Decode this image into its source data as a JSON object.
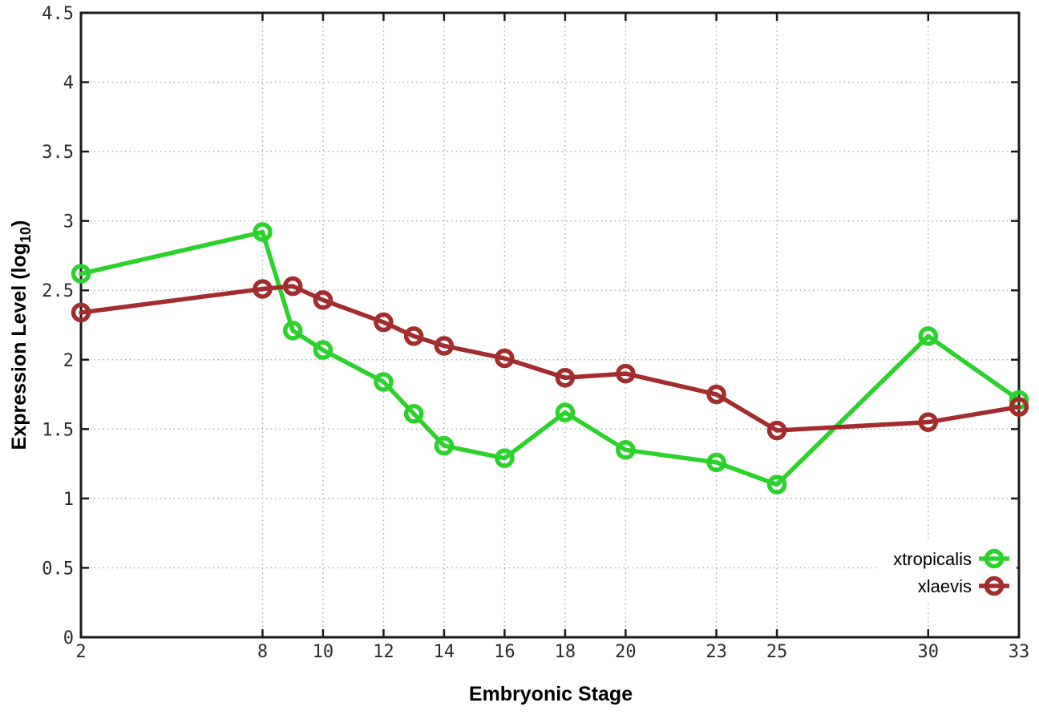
{
  "chart_data": {
    "type": "line",
    "title": "",
    "xlabel": "Embryonic Stage",
    "ylabel": "Expression Level (log10)",
    "ylabel_parts": {
      "main": "Expression Level (log",
      "sub": "10",
      "close": ")"
    },
    "x": [
      2,
      8,
      9,
      10,
      12,
      13,
      14,
      16,
      18,
      20,
      23,
      25,
      30,
      33
    ],
    "xticks": [
      2,
      8,
      10,
      12,
      14,
      16,
      18,
      20,
      23,
      25,
      30,
      33
    ],
    "yticks": [
      0,
      0.5,
      1,
      1.5,
      2,
      2.5,
      3,
      3.5,
      4,
      4.5
    ],
    "ytick_labels": [
      "0",
      "0.5",
      "1",
      "1.5",
      "2",
      "2.5",
      "3",
      "3.5",
      "4",
      "4.5"
    ],
    "xlim": [
      2,
      33
    ],
    "ylim": [
      0,
      4.5
    ],
    "grid": true,
    "legend_position": "inside-bottom-right",
    "series": [
      {
        "name": "xtropicalis",
        "color": "#2bd22b",
        "marker": "open-circle",
        "values": [
          2.62,
          2.92,
          2.21,
          2.07,
          1.84,
          1.61,
          1.38,
          1.29,
          1.62,
          1.35,
          1.26,
          1.1,
          2.17,
          1.71
        ]
      },
      {
        "name": "xlaevis",
        "color": "#a32c2c",
        "marker": "open-circle",
        "values": [
          2.34,
          2.51,
          2.53,
          2.43,
          2.27,
          2.17,
          2.1,
          2.01,
          1.87,
          1.9,
          1.75,
          1.49,
          1.55,
          1.66
        ]
      }
    ],
    "colors": {
      "background": "#ffffff",
      "plot_border": "#1a1a1a",
      "grid": "#aaaaaa",
      "tick_label": "#2b2b2b",
      "axis_title": "#000000"
    }
  }
}
